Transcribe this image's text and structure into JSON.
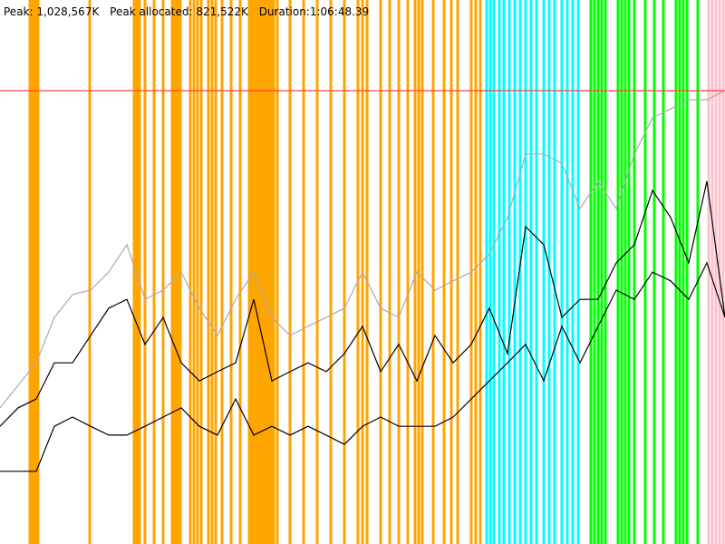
{
  "chart_data": {
    "type": "line",
    "stats": [
      {
        "name": "Peak:",
        "value": 1028567,
        "value_label": "1,028,567K",
        "color": "#ff4040"
      },
      {
        "name": "Peak allocated:",
        "value_label": "821,522K"
      },
      {
        "name": "Duration:",
        "value_label": "1:06:48.39"
      }
    ],
    "xlim": [
      0,
      800
    ],
    "ylim": [
      0,
      1234280
    ],
    "events": [
      {
        "color": "#ffa500",
        "x": [
          33,
          36,
          39,
          42,
          99,
          148,
          151,
          154,
          160,
          170,
          180,
          190,
          193,
          196,
          199,
          210,
          214,
          218,
          222,
          230,
          234,
          238,
          245,
          255,
          265,
          275,
          278,
          281,
          284,
          287,
          290,
          293,
          296,
          299,
          302,
          306,
          320,
          335,
          350,
          365,
          380,
          395,
          400,
          405,
          420,
          430,
          440,
          450,
          458,
          462,
          466,
          478,
          490,
          498,
          505,
          520,
          525,
          530
        ]
      },
      {
        "color": "#00ffff",
        "x": [
          537,
          541,
          545,
          551,
          556,
          562,
          568,
          574,
          580,
          586,
          592,
          600,
          606,
          612,
          620,
          626,
          632,
          638
        ]
      },
      {
        "color": "#00ff00",
        "x": [
          652,
          656,
          660,
          664,
          668,
          682,
          686,
          690,
          694,
          700,
          712,
          722,
          732,
          746,
          750,
          754,
          758,
          770
        ]
      },
      {
        "color": "#ffc0cb",
        "x": [
          782,
          786,
          790,
          794,
          798
        ]
      }
    ],
    "x": [
      0,
      20,
      40,
      60,
      80,
      100,
      120,
      140,
      160,
      180,
      200,
      220,
      240,
      260,
      280,
      300,
      320,
      340,
      360,
      380,
      400,
      420,
      440,
      460,
      480,
      500,
      520,
      540,
      560,
      580,
      600,
      620,
      640,
      660,
      680,
      700,
      720,
      740,
      760,
      780,
      800
    ],
    "series": [
      {
        "color": "#aaaaaa",
        "values": [
          309000,
          360000,
          411000,
          514000,
          566000,
          576000,
          617000,
          679000,
          555000,
          576000,
          617000,
          535000,
          473000,
          555000,
          617000,
          514000,
          473000,
          494000,
          514000,
          535000,
          617000,
          535000,
          514000,
          617000,
          576000,
          597000,
          617000,
          658000,
          741000,
          885000,
          885000,
          864000,
          761000,
          823000,
          761000,
          885000,
          967000,
          987000,
          1008000,
          1008000,
          1029000
        ]
      },
      {
        "color": "#000000",
        "values": [
          267000,
          309000,
          329000,
          411000,
          411000,
          473000,
          535000,
          555000,
          453000,
          514000,
          411000,
          370000,
          391000,
          411000,
          555000,
          370000,
          391000,
          411000,
          391000,
          432000,
          494000,
          391000,
          453000,
          370000,
          473000,
          411000,
          453000,
          535000,
          432000,
          720000,
          679000,
          514000,
          555000,
          555000,
          638000,
          679000,
          802000,
          741000,
          638000,
          823000,
          514000
        ]
      },
      {
        "color": "#000000",
        "values": [
          165000,
          165000,
          165000,
          267000,
          288000,
          267000,
          247000,
          247000,
          267000,
          288000,
          309000,
          267000,
          247000,
          329000,
          247000,
          267000,
          247000,
          267000,
          247000,
          226000,
          267000,
          288000,
          267000,
          267000,
          267000,
          288000,
          329000,
          370000,
          411000,
          453000,
          370000,
          494000,
          411000,
          494000,
          576000,
          555000,
          617000,
          597000,
          555000,
          638000,
          514000
        ]
      }
    ]
  }
}
